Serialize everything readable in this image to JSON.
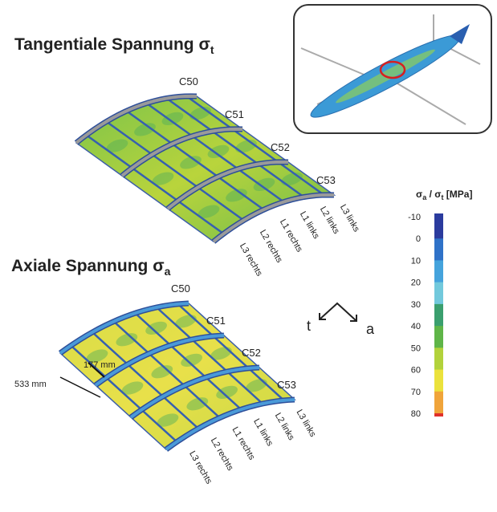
{
  "titles": {
    "top": {
      "text": "Tangentiale Spannung σ",
      "sub": "t"
    },
    "bottom": {
      "text": "Axiale Spannung σ",
      "sub": "a"
    }
  },
  "frames": [
    "C50",
    "C51",
    "C52",
    "C53"
  ],
  "stringers": [
    "L3 rechts",
    "L2 rechts",
    "L1 rechts",
    "L1 links",
    "L2 links",
    "L3 links"
  ],
  "dimensions": {
    "stringer_pitch": "177 mm",
    "frame_pitch": "533 mm"
  },
  "directions": {
    "tangential": "t",
    "axial": "a"
  },
  "colorbar": {
    "title": [
      "σ",
      "a",
      " / σ",
      "t",
      " [MPa]"
    ],
    "ticks": [
      -10,
      0,
      10,
      20,
      30,
      40,
      50,
      60,
      70,
      80
    ],
    "colors": [
      "#2b3b9e",
      "#2f72c8",
      "#45a3dc",
      "#72c9dc",
      "#3a9f6e",
      "#5fb548",
      "#b2d23b",
      "#ebe23c",
      "#f0a43a",
      "#e0302a"
    ]
  }
}
